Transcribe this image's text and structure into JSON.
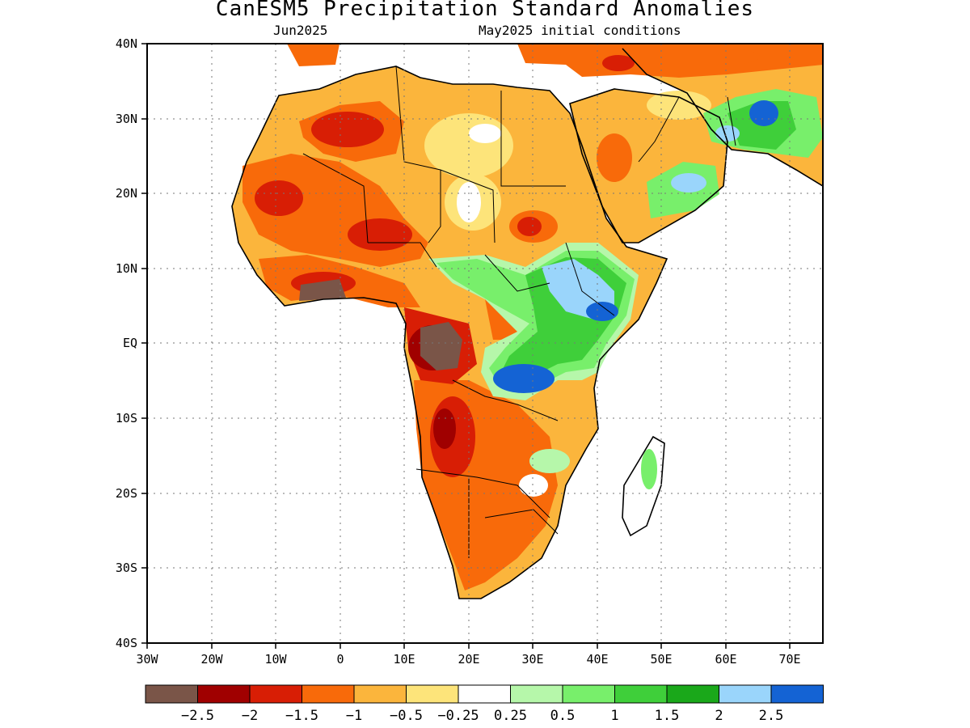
{
  "title": "CanESM5 Precipitation Standard Anomalies",
  "subtitle_left": "Jun2025",
  "subtitle_right": "May2025 initial conditions",
  "axes": {
    "lon_labels": [
      "30W",
      "20W",
      "10W",
      "0",
      "10E",
      "20E",
      "30E",
      "40E",
      "50E",
      "60E",
      "70E"
    ],
    "lat_labels": [
      "40N",
      "30N",
      "20N",
      "10N",
      "EQ",
      "10S",
      "20S",
      "30S",
      "40S"
    ],
    "lon_range": [
      -30,
      75
    ],
    "lat_range": [
      -40,
      40
    ],
    "grid": true
  },
  "legend": {
    "colors": [
      "#7a5548",
      "#a00000",
      "#d81e05",
      "#f86a0a",
      "#fbb53c",
      "#fde47a",
      "#ffffff",
      "#b6f7aa",
      "#78ef6b",
      "#3fcf3a",
      "#1aa81a",
      "#9ad5fb",
      "#1463d4"
    ],
    "labels": [
      "-2.5",
      "-2",
      "-1.5",
      "-1",
      "-0.5",
      "-0.25",
      "0.25",
      "0.5",
      "1",
      "1.5",
      "2",
      "2.5"
    ]
  }
}
